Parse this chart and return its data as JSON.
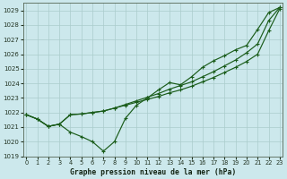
{
  "xlabel": "Graphe pression niveau de la mer (hPa)",
  "bg_color": "#cce8ec",
  "grid_color": "#aacccc",
  "line_color": "#1a5c1a",
  "ylim": [
    1019,
    1029.5
  ],
  "xlim": [
    -0.3,
    23.3
  ],
  "yticks": [
    1019,
    1020,
    1021,
    1022,
    1023,
    1024,
    1025,
    1026,
    1027,
    1028,
    1029
  ],
  "xticks": [
    0,
    1,
    2,
    3,
    4,
    5,
    6,
    7,
    8,
    9,
    10,
    11,
    12,
    13,
    14,
    15,
    16,
    17,
    18,
    19,
    20,
    21,
    22,
    23
  ],
  "series_smooth1": [
    1021.85,
    1021.55,
    1021.05,
    1021.2,
    1021.85,
    1021.9,
    1022.0,
    1022.1,
    1022.3,
    1022.5,
    1022.7,
    1022.9,
    1023.1,
    1023.35,
    1023.55,
    1023.8,
    1024.1,
    1024.4,
    1024.75,
    1025.1,
    1025.5,
    1026.0,
    1027.6,
    1029.1
  ],
  "series_smooth2": [
    1021.85,
    1021.55,
    1021.05,
    1021.2,
    1021.85,
    1021.9,
    1022.0,
    1022.1,
    1022.3,
    1022.55,
    1022.8,
    1023.05,
    1023.3,
    1023.6,
    1023.85,
    1024.1,
    1024.45,
    1024.8,
    1025.2,
    1025.6,
    1026.1,
    1026.7,
    1028.3,
    1029.2
  ],
  "series_zigzag": [
    1021.85,
    1021.55,
    1021.05,
    1021.2,
    1020.65,
    1020.35,
    1020.0,
    1019.35,
    1020.0,
    1021.6,
    1022.5,
    1023.0,
    1023.55,
    1024.05,
    1023.9,
    1024.45,
    1025.1,
    1025.55,
    1025.9,
    1026.3,
    1026.6,
    1027.7,
    1028.85,
    1029.2
  ]
}
